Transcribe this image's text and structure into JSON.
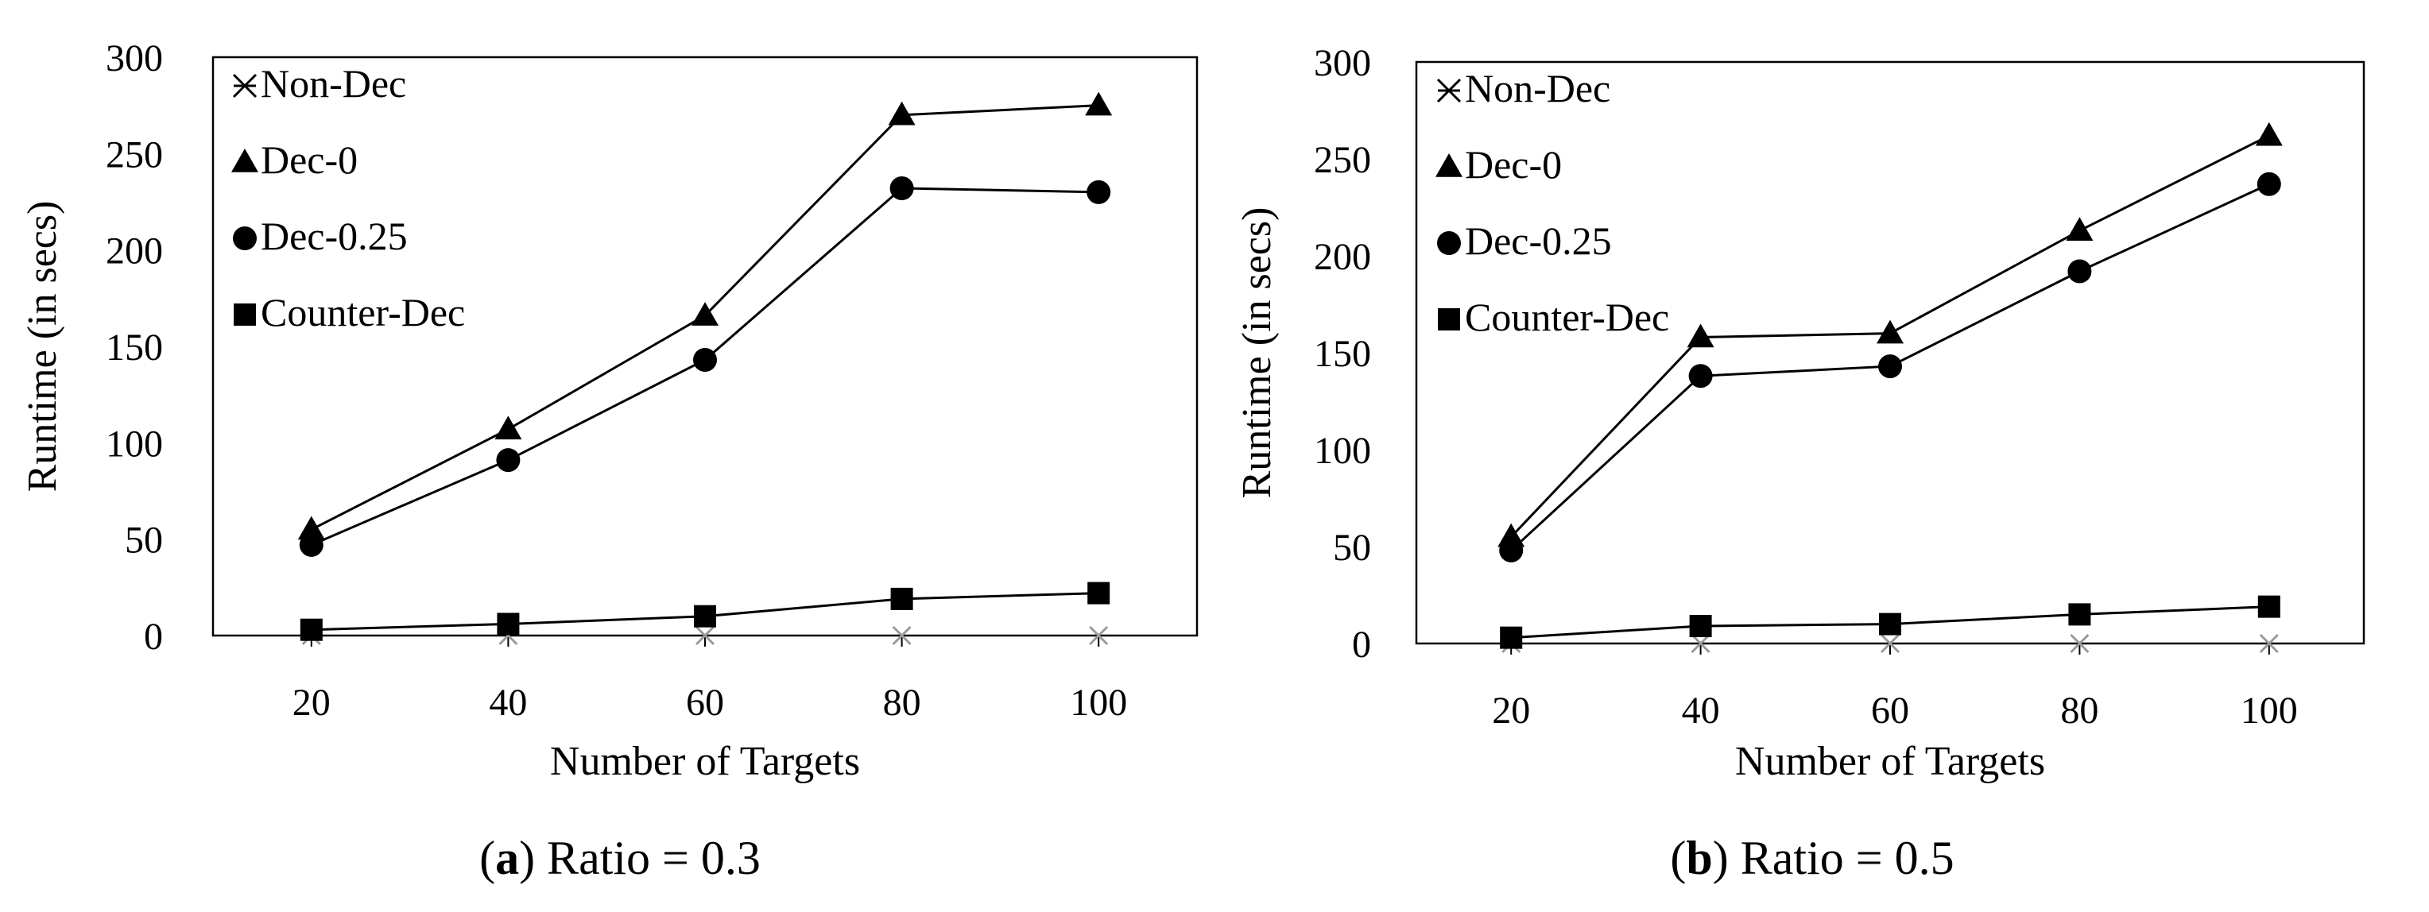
{
  "chart_data": [
    {
      "type": "line",
      "caption": {
        "prefix": "(",
        "letter": "a",
        "suffix": ") Ratio = 0.3"
      },
      "xlabel": "Number of Targets",
      "ylabel": "Runtime (in secs)",
      "categories": [
        "20",
        "40",
        "60",
        "80",
        "100"
      ],
      "ylim": [
        0,
        300
      ],
      "yticks": [
        0,
        50,
        100,
        150,
        200,
        250,
        300
      ],
      "legend_position": "top-left",
      "series": [
        {
          "name": "Non-Dec",
          "marker": "x",
          "values": [
            0,
            0,
            0,
            0,
            0
          ]
        },
        {
          "name": "Dec-0",
          "marker": "triangle",
          "values": [
            55,
            107,
            166,
            270,
            275
          ]
        },
        {
          "name": "Dec-0.25",
          "marker": "circle",
          "values": [
            47,
            91,
            143,
            232,
            230
          ]
        },
        {
          "name": "Counter-Dec",
          "marker": "square",
          "values": [
            3,
            6,
            10,
            19,
            22
          ]
        }
      ]
    },
    {
      "type": "line",
      "caption": {
        "prefix": "(",
        "letter": "b",
        "suffix": ") Ratio = 0.5"
      },
      "xlabel": "Number of Targets",
      "ylabel": "Runtime (in secs)",
      "categories": [
        "20",
        "40",
        "60",
        "80",
        "100"
      ],
      "ylim": [
        0,
        300
      ],
      "yticks": [
        0,
        50,
        100,
        150,
        200,
        250,
        300
      ],
      "legend_position": "top-left",
      "series": [
        {
          "name": "Non-Dec",
          "marker": "x",
          "values": [
            0,
            0,
            0,
            0,
            0
          ]
        },
        {
          "name": "Dec-0",
          "marker": "triangle",
          "values": [
            55,
            158,
            160,
            213,
            262
          ]
        },
        {
          "name": "Dec-0.25",
          "marker": "circle",
          "values": [
            48,
            138,
            143,
            192,
            237
          ]
        },
        {
          "name": "Counter-Dec",
          "marker": "square",
          "values": [
            3,
            9,
            10,
            15,
            19
          ]
        }
      ]
    }
  ]
}
